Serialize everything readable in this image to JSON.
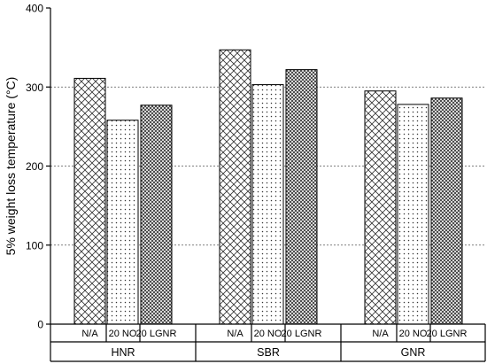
{
  "chart_data": {
    "type": "bar",
    "title": "",
    "ylabel": "5% weight loss temperature (°C)",
    "ylim": [
      0,
      400
    ],
    "yticks": [
      0,
      100,
      200,
      300,
      400
    ],
    "grid": "horizontal dashed at 100, 200, 300",
    "groups": [
      {
        "name": "HNR",
        "bars": [
          {
            "label": "N/A",
            "value": 311,
            "pattern": "crosshatch"
          },
          {
            "label": "20 NO",
            "value": 258,
            "pattern": "dots"
          },
          {
            "label": "20 LGNR",
            "value": 277,
            "pattern": "dense-crosshatch"
          }
        ]
      },
      {
        "name": "SBR",
        "bars": [
          {
            "label": "N/A",
            "value": 347,
            "pattern": "crosshatch"
          },
          {
            "label": "20 NO",
            "value": 303,
            "pattern": "dots"
          },
          {
            "label": "20 LGNR",
            "value": 322,
            "pattern": "dense-crosshatch"
          }
        ]
      },
      {
        "name": "GNR",
        "bars": [
          {
            "label": "N/A",
            "value": 295,
            "pattern": "crosshatch"
          },
          {
            "label": "20 NO",
            "value": 278,
            "pattern": "dots"
          },
          {
            "label": "20 LGNR",
            "value": 286,
            "pattern": "dense-crosshatch"
          }
        ]
      }
    ]
  }
}
